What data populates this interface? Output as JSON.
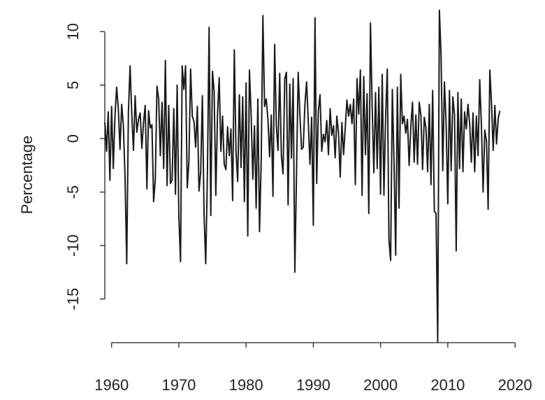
{
  "chart_data": {
    "type": "line",
    "ylabel": "Percentage",
    "x": [
      1959,
      1959.25,
      1959.5,
      1959.75,
      1960,
      1960.25,
      1960.5,
      1960.75,
      1961,
      1961.25,
      1961.5,
      1961.75,
      1962,
      1962.25,
      1962.5,
      1962.75,
      1963,
      1963.25,
      1963.5,
      1963.75,
      1964,
      1964.25,
      1964.5,
      1964.75,
      1965,
      1965.25,
      1965.5,
      1965.75,
      1966,
      1966.25,
      1966.5,
      1966.75,
      1967,
      1967.25,
      1967.5,
      1967.75,
      1968,
      1968.25,
      1968.5,
      1968.75,
      1969,
      1969.25,
      1969.5,
      1969.75,
      1970,
      1970.25,
      1970.5,
      1970.75,
      1971,
      1971.25,
      1971.5,
      1971.75,
      1972,
      1972.25,
      1972.5,
      1972.75,
      1973,
      1973.25,
      1973.5,
      1973.75,
      1974,
      1974.25,
      1974.5,
      1974.75,
      1975,
      1975.25,
      1975.5,
      1975.75,
      1976,
      1976.25,
      1976.5,
      1976.75,
      1977,
      1977.25,
      1977.5,
      1977.75,
      1978,
      1978.25,
      1978.5,
      1978.75,
      1979,
      1979.25,
      1979.5,
      1979.75,
      1980,
      1980.25,
      1980.5,
      1980.75,
      1981,
      1981.25,
      1981.5,
      1981.75,
      1982,
      1982.25,
      1982.5,
      1982.75,
      1983,
      1983.25,
      1983.5,
      1983.75,
      1984,
      1984.25,
      1984.5,
      1984.75,
      1985,
      1985.25,
      1985.5,
      1985.75,
      1986,
      1986.25,
      1986.5,
      1986.75,
      1987,
      1987.25,
      1987.5,
      1987.75,
      1988,
      1988.25,
      1988.5,
      1988.75,
      1989,
      1989.25,
      1989.5,
      1989.75,
      1990,
      1990.25,
      1990.5,
      1990.75,
      1991,
      1991.25,
      1991.5,
      1991.75,
      1992,
      1992.25,
      1992.5,
      1992.75,
      1993,
      1993.25,
      1993.5,
      1993.75,
      1994,
      1994.25,
      1994.5,
      1994.75,
      1995,
      1995.25,
      1995.5,
      1995.75,
      1996,
      1996.25,
      1996.5,
      1996.75,
      1997,
      1997.25,
      1997.5,
      1997.75,
      1998,
      1998.25,
      1998.5,
      1998.75,
      1999,
      1999.25,
      1999.5,
      1999.75,
      2000,
      2000.25,
      2000.5,
      2000.75,
      2001,
      2001.25,
      2001.5,
      2001.75,
      2002,
      2002.25,
      2002.5,
      2002.75,
      2003,
      2003.25,
      2003.5,
      2003.75,
      2004,
      2004.25,
      2004.5,
      2004.75,
      2005,
      2005.25,
      2005.5,
      2005.75,
      2006,
      2006.25,
      2006.5,
      2006.75,
      2007,
      2007.25,
      2007.5,
      2007.75,
      2008,
      2008.25,
      2008.5,
      2008.75,
      2009,
      2009.25,
      2009.5,
      2009.75,
      2010,
      2010.25,
      2010.5,
      2010.75,
      2011,
      2011.25,
      2011.5,
      2011.75,
      2012,
      2012.25,
      2012.5,
      2012.75,
      2013,
      2013.25,
      2013.5,
      2013.75,
      2014,
      2014.25,
      2014.5,
      2014.75,
      2015,
      2015.25,
      2015.5,
      2015.75,
      2016,
      2016.25,
      2016.5,
      2016.75,
      2017,
      2017.25,
      2017.5,
      2017.75
    ],
    "series": [
      {
        "color": "#1a1a1a",
        "values": [
          1.5,
          -1.2,
          2.5,
          -3.9,
          3.0,
          -2.8,
          2.1,
          4.8,
          2.8,
          -1.0,
          3.2,
          1.2,
          -3.6,
          -11.7,
          2.5,
          6.8,
          2.3,
          -1.1,
          4.0,
          0.6,
          1.8,
          2.4,
          -0.9,
          1.5,
          3.1,
          -4.7,
          2.6,
          1.0,
          1.3,
          -5.9,
          -3.8,
          4.9,
          3.7,
          -1.6,
          3.4,
          -2.8,
          7.3,
          -4.4,
          3.1,
          -4.2,
          -3.9,
          2.8,
          -5.2,
          5.0,
          -7.2,
          -11.5,
          6.8,
          4.6,
          6.8,
          -4.6,
          -2.1,
          6.5,
          2.1,
          1.6,
          -0.8,
          3.0,
          -4.9,
          -3.1,
          4.0,
          -7.1,
          -11.7,
          -3.3,
          10.4,
          -7.2,
          6.3,
          4.4,
          -5.3,
          2.2,
          5.7,
          -1.2,
          2.1,
          -2.4,
          -2.9,
          1.1,
          -1.6,
          0.9,
          -5.8,
          8.3,
          -1.2,
          -4.0,
          4.1,
          -2.7,
          3.9,
          -5.9,
          5.2,
          -9.1,
          6.4,
          2.3,
          -3.8,
          1.2,
          -6.5,
          3.7,
          -8.7,
          -2.1,
          11.5,
          3.0,
          3.7,
          1.8,
          -1.7,
          2.2,
          -5.4,
          8.8,
          1.2,
          -1.1,
          6.1,
          -1.6,
          -3.3,
          5.6,
          6.2,
          -6.2,
          5.1,
          -1.8,
          5.6,
          -12.5,
          -3.3,
          6.2,
          2.3,
          -1.0,
          -0.8,
          3.2,
          5.3,
          1.6,
          -2.4,
          2.0,
          -8.1,
          11.3,
          -4.2,
          2.6,
          4.1,
          -1.2,
          0.4,
          -0.3,
          1.7,
          -1.5,
          2.8,
          0.3,
          1.2,
          -1.8,
          2.1,
          0.5,
          -3.6,
          1.5,
          -1.5,
          1.0,
          3.6,
          2.1,
          3.2,
          1.4,
          3.7,
          -4.3,
          5.6,
          2.3,
          6.4,
          -5.3,
          5.8,
          -1.5,
          4.2,
          -7.0,
          10.8,
          3.1,
          -3.2,
          4.3,
          -2.8,
          4.8,
          -5.2,
          6.0,
          -5.3,
          2.0,
          6.5,
          -9.5,
          -11.4,
          4.6,
          -2.1,
          -10.9,
          4.8,
          -6.5,
          6.0,
          1.4,
          2.1,
          0.5,
          1.8,
          -2.5,
          1.1,
          3.4,
          -2.2,
          2.2,
          -2.4,
          3.4,
          2.2,
          -2.9,
          2.0,
          1.0,
          -3.1,
          3.2,
          -4.3,
          4.5,
          -6.8,
          -7.0,
          -19.0,
          12.0,
          7.8,
          -3.0,
          5.3,
          1.4,
          -6.1,
          4.5,
          -3.0,
          3.9,
          2.2,
          -10.5,
          4.3,
          -2.8,
          3.7,
          -3.1,
          2.5,
          0.9,
          3.2,
          1.4,
          -2.2,
          2.4,
          -3.1,
          2.1,
          -1.6,
          5.5,
          1.2,
          -5.0,
          0.8,
          -0.2,
          -6.6,
          6.4,
          3.3,
          -1.1,
          3.1,
          -0.5,
          1.9,
          2.6
        ]
      }
    ],
    "xlim": [
      1956.6,
      2020.3
    ],
    "xticks": [
      1960,
      1970,
      1980,
      1990,
      2000,
      2010,
      2020
    ],
    "ylim": [
      -19.8,
      12.5
    ],
    "yticks": [
      -15,
      -10,
      -5,
      0,
      5,
      10
    ]
  }
}
